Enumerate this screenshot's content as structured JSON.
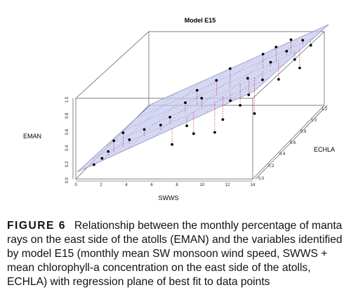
{
  "chart_data": {
    "type": "scatter",
    "title": "Model E15",
    "xlabel": "SWWS",
    "ylabel": "EMAN",
    "zlabel": "ECHLA",
    "x_ticks": [
      "0",
      "2",
      "4",
      "6",
      "8",
      "10",
      "12",
      "14"
    ],
    "y_ticks": [
      "0.0",
      "0.2",
      "0.4",
      "0.6",
      "0.8",
      "1.0"
    ],
    "z_ticks": [
      "0.0",
      "0.2",
      "0.4",
      "0.6",
      "0.8",
      "1.0",
      "1.2"
    ],
    "xlim": [
      0,
      14
    ],
    "ylim": [
      0,
      1
    ],
    "zlim": [
      0,
      1.2
    ],
    "plane_color": "#c8cbef",
    "point_color": "#000000",
    "residual_color": "#cc2222",
    "points": [
      [
        1.2,
        0.14,
        0.05
      ],
      [
        1.6,
        0.18,
        0.1
      ],
      [
        2.0,
        0.25,
        0.12
      ],
      [
        2.3,
        0.36,
        0.15
      ],
      [
        2.8,
        0.42,
        0.2
      ],
      [
        3.2,
        0.32,
        0.22
      ],
      [
        4.1,
        0.4,
        0.28
      ],
      [
        5.3,
        0.44,
        0.3
      ],
      [
        5.8,
        0.5,
        0.35
      ],
      [
        6.2,
        0.2,
        0.3
      ],
      [
        6.8,
        0.34,
        0.42
      ],
      [
        7.2,
        0.22,
        0.45
      ],
      [
        7.6,
        0.62,
        0.5
      ],
      [
        8.4,
        0.16,
        0.55
      ],
      [
        8.8,
        0.28,
        0.6
      ],
      [
        9.3,
        0.5,
        0.62
      ],
      [
        9.7,
        0.38,
        0.7
      ],
      [
        10.2,
        0.7,
        0.72
      ],
      [
        10.6,
        0.24,
        0.75
      ],
      [
        11.0,
        0.62,
        0.8
      ],
      [
        11.4,
        0.8,
        0.85
      ],
      [
        11.8,
        0.55,
        0.9
      ],
      [
        12.2,
        0.86,
        0.95
      ],
      [
        12.6,
        0.72,
        1.0
      ],
      [
        13.0,
        0.92,
        1.05
      ],
      [
        13.4,
        0.82,
        1.1
      ],
      [
        8.2,
        0.75,
        0.62
      ],
      [
        9.0,
        0.85,
        0.68
      ],
      [
        10.8,
        0.9,
        0.85
      ],
      [
        11.6,
        0.95,
        0.9
      ],
      [
        12.4,
        0.98,
        0.98
      ],
      [
        7.0,
        0.68,
        0.55
      ],
      [
        6.4,
        0.58,
        0.48
      ],
      [
        12.9,
        0.6,
        1.02
      ],
      [
        10.0,
        0.45,
        0.78
      ]
    ]
  },
  "caption": {
    "label": "FIGURE 6",
    "text": "Relationship between the monthly percentage of manta rays on the east side of the atolls (EMAN) and the variables identified by model E15 (monthly mean SW monsoon wind speed, SWWS + mean chlorophyll-a concentration on the east side of the atolls, ECHLA) with regression plane of best fit to data points"
  }
}
